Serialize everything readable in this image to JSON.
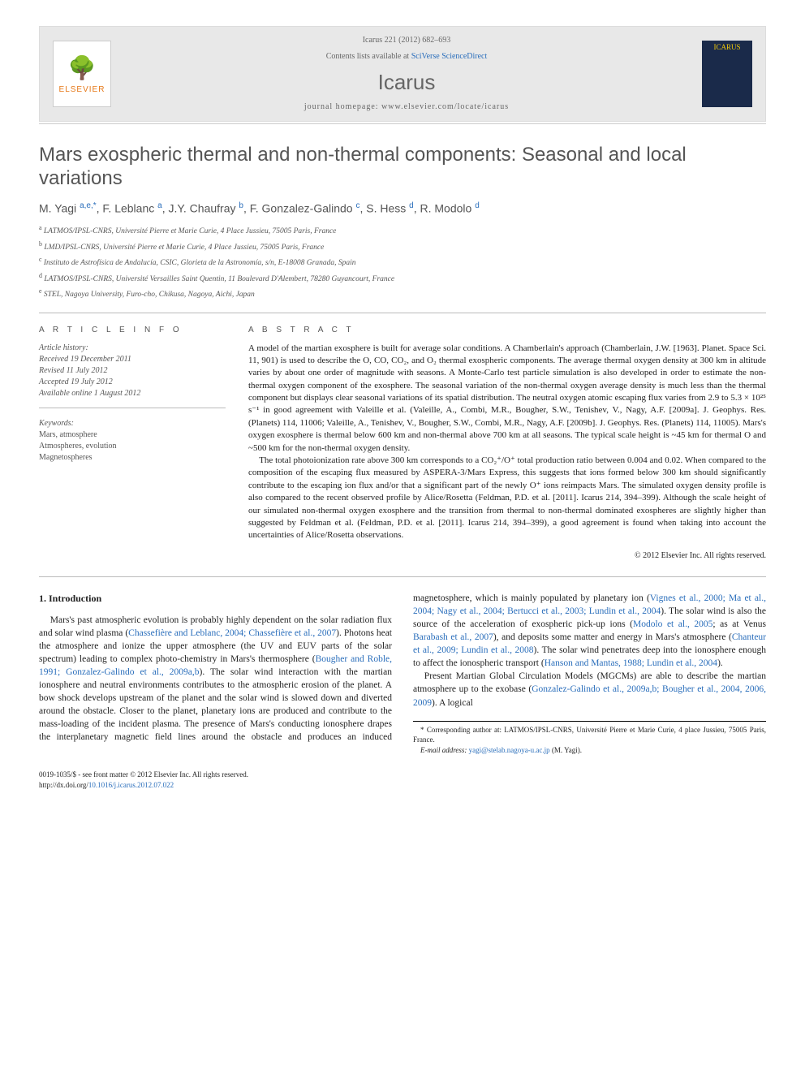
{
  "header": {
    "citation": "Icarus 221 (2012) 682–693",
    "contents_prefix": "Contents lists available at ",
    "contents_link": "SciVerse ScienceDirect",
    "journal": "Icarus",
    "homepage_prefix": "journal homepage: ",
    "homepage_url": "www.elsevier.com/locate/icarus",
    "publisher": "ELSEVIER",
    "cover_label": "ICARUS"
  },
  "title": "Mars exospheric thermal and non-thermal components: Seasonal and local variations",
  "authors_html": "M. Yagi <sup>a,e,*</sup>, F. Leblanc <sup>a</sup>, J.Y. Chaufray <sup>b</sup>, F. Gonzalez-Galindo <sup>c</sup>, S. Hess <sup>d</sup>, R. Modolo <sup>d</sup>",
  "affiliations": [
    {
      "sup": "a",
      "text": "LATMOS/IPSL-CNRS, Université Pierre et Marie Curie, 4 Place Jussieu, 75005 Paris, France"
    },
    {
      "sup": "b",
      "text": "LMD/IPSL-CNRS, Université Pierre et Marie Curie, 4 Place Jussieu, 75005 Paris, France"
    },
    {
      "sup": "c",
      "text": "Instituto de Astrofísica de Andalucía, CSIC, Glorieta de la Astronomía, s/n, E-18008 Granada, Spain"
    },
    {
      "sup": "d",
      "text": "LATMOS/IPSL-CNRS, Université Versailles Saint Quentin, 11 Boulevard D'Alembert, 78280 Guyancourt, France"
    },
    {
      "sup": "e",
      "text": "STEL, Nagoya University, Furo-cho, Chikusa, Nagoya, Aichi, Japan"
    }
  ],
  "article_info": {
    "heading": "A R T I C L E   I N F O",
    "history_label": "Article history:",
    "history": [
      "Received 19 December 2011",
      "Revised 11 July 2012",
      "Accepted 19 July 2012",
      "Available online 1 August 2012"
    ],
    "keywords_label": "Keywords:",
    "keywords": [
      "Mars, atmosphere",
      "Atmospheres, evolution",
      "Magnetospheres"
    ]
  },
  "abstract": {
    "heading": "A B S T R A C T",
    "paragraphs": [
      "A model of the martian exosphere is built for average solar conditions. A Chamberlain's approach (Chamberlain, J.W. [1963]. Planet. Space Sci. 11, 901) is used to describe the O, CO, CO₂, and O₂ thermal exospheric components. The average thermal oxygen density at 300 km in altitude varies by about one order of magnitude with seasons. A Monte-Carlo test particle simulation is also developed in order to estimate the non-thermal oxygen component of the exosphere. The seasonal variation of the non-thermal oxygen average density is much less than the thermal component but displays clear seasonal variations of its spatial distribution. The neutral oxygen atomic escaping flux varies from 2.9 to 5.3 × 10²⁵ s⁻¹ in good agreement with Valeille et al. (Valeille, A., Combi, M.R., Bougher, S.W., Tenishev, V., Nagy, A.F. [2009a]. J. Geophys. Res. (Planets) 114, 11006; Valeille, A., Tenishev, V., Bougher, S.W., Combi, M.R., Nagy, A.F. [2009b]. J. Geophys. Res. (Planets) 114, 11005). Mars's oxygen exosphere is thermal below 600 km and non-thermal above 700 km at all seasons. The typical scale height is ~45 km for thermal O and ~500 km for the non-thermal oxygen density.",
      "The total photoionization rate above 300 km corresponds to a CO₂⁺/O⁺ total production ratio between 0.004 and 0.02. When compared to the composition of the escaping flux measured by ASPERA-3/Mars Express, this suggests that ions formed below 300 km should significantly contribute to the escaping ion flux and/or that a significant part of the newly O⁺ ions reimpacts Mars. The simulated oxygen density profile is also compared to the recent observed profile by Alice/Rosetta (Feldman, P.D. et al. [2011]. Icarus 214, 394–399). Although the scale height of our simulated non-thermal oxygen exosphere and the transition from thermal to non-thermal dominated exospheres are slightly higher than suggested by Feldman et al. (Feldman, P.D. et al. [2011]. Icarus 214, 394–399), a good agreement is found when taking into account the uncertainties of Alice/Rosetta observations."
    ],
    "copyright": "© 2012 Elsevier Inc. All rights reserved."
  },
  "body": {
    "section_heading": "1. Introduction",
    "p1_pre": "Mars's past atmospheric evolution is probably highly dependent on the solar radiation flux and solar wind plasma (",
    "p1_link1": "Chassefière and Leblanc, 2004; Chassefière et al., 2007",
    "p1_mid1": "). Photons heat the atmosphere and ionize the upper atmosphere (the UV and EUV parts of the solar spectrum) leading to complex photo-chemistry in Mars's thermosphere (",
    "p1_link2": "Bougher and Roble, 1991; Gonzalez-Galindo et al., 2009a,b",
    "p1_mid2": "). The solar wind interaction with the martian ionosphere and neutral environments contributes to the atmospheric erosion of the planet. A bow shock develops upstream of the planet and the solar wind is slowed down and diverted around the obstacle. Closer to the planet, planetary ions are produced and contribute to the mass-loading of the incident plasma. The presence of Mars's conducting ionosphere drapes the interplanetary magnetic field lines around the obstacle and produces an induced magnetosphere, which is mainly populated by planetary ion (",
    "p1_link3": "Vignes et al., 2000; Ma et al., 2004; Nagy et al., 2004; Bertucci et al., 2003; Lundin et al., 2004",
    "p1_mid3": "). The solar wind is also the source of the acceleration of exospheric pick-up ions (",
    "p1_link4": "Modolo et al., 2005",
    "p1_mid4": "; as at Venus ",
    "p1_link5": "Barabash et al., 2007",
    "p1_mid5": "), and deposits some matter and energy in Mars's atmosphere (",
    "p1_link6": "Chanteur et al., 2009; Lundin et al., 2008",
    "p1_mid6": "). The solar wind penetrates deep into the ionosphere enough to affect the ionospheric transport (",
    "p1_link7": "Hanson and Mantas, 1988; Lundin et al., 2004",
    "p1_post": ").",
    "p2_pre": "Present Martian Global Circulation Models (MGCMs) are able to describe the martian atmosphere up to the exobase (",
    "p2_link1": "Gonzalez-Galindo et al., 2009a,b; Bougher et al., 2004, 2006, 2009",
    "p2_post": "). A logical"
  },
  "footnote": {
    "corr": "* Corresponding author at: LATMOS/IPSL-CNRS, Université Pierre et Marie Curie, 4 place Jussieu, 75005 Paris, France.",
    "email_label": "E-mail address: ",
    "email": "yagi@stelab.nagoya-u.ac.jp",
    "email_suffix": " (M. Yagi)."
  },
  "footer": {
    "left_line1": "0019-1035/$ - see front matter © 2012 Elsevier Inc. All rights reserved.",
    "left_line2_pre": "http://dx.doi.org/",
    "doi": "10.1016/j.icarus.2012.07.022"
  },
  "colors": {
    "link": "#2a6ebb",
    "header_bg": "#e8e8e8",
    "text_gray": "#555555",
    "elsevier_orange": "#e67817"
  }
}
